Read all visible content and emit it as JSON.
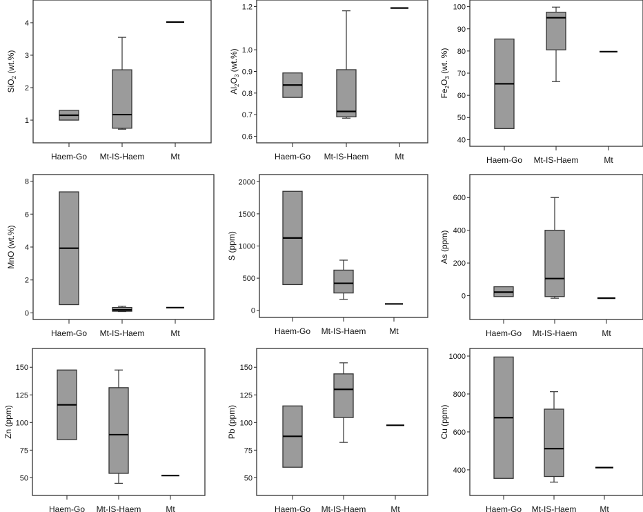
{
  "chart_data": [
    {
      "type": "box",
      "ylabel": "SiO2 (wt.%)",
      "ylabel_parts": [
        [
          "SiO",
          ""
        ],
        [
          "2",
          "sub"
        ],
        [
          " (wt.%)",
          ""
        ]
      ],
      "yticks": [
        1,
        2,
        3,
        4
      ],
      "tick_labels": [
        "1",
        "2",
        "3",
        "4"
      ],
      "ylim": [
        0.3,
        4.7
      ],
      "categories": [
        "Haem-Go",
        "Mt-IS-Haem",
        "Mt"
      ],
      "boxes": [
        {
          "category": "Haem-Go",
          "min": 1.0,
          "q1": 1.0,
          "median": 1.15,
          "q3": 1.3,
          "max": 1.3
        },
        {
          "category": "Mt-IS-Haem",
          "min": 0.72,
          "q1": 0.75,
          "median": 1.17,
          "q3": 2.55,
          "max": 3.55
        },
        {
          "category": "Mt",
          "single": 4.02
        }
      ]
    },
    {
      "type": "box",
      "ylabel": "Al2O3 (wt.%)",
      "ylabel_parts": [
        [
          "Al",
          ""
        ],
        [
          "2",
          "sub"
        ],
        [
          "O",
          ""
        ],
        [
          "3",
          "sub"
        ],
        [
          " (wt.%)",
          ""
        ]
      ],
      "yticks": [
        0.6,
        0.7,
        0.8,
        0.9,
        1.0,
        1.2
      ],
      "tick_labels": [
        "0.6",
        "0.7",
        "0.8",
        "0.9",
        "1.0",
        "1.2"
      ],
      "ylim": [
        0.57,
        1.23
      ],
      "categories": [
        "Haem-Go",
        "Mt-IS-Haem",
        "Mt"
      ],
      "boxes": [
        {
          "category": "Haem-Go",
          "min": 0.78,
          "q1": 0.78,
          "median": 0.837,
          "q3": 0.893,
          "max": 0.893
        },
        {
          "category": "Mt-IS-Haem",
          "min": 0.684,
          "q1": 0.69,
          "median": 0.715,
          "q3": 0.908,
          "max": 1.18
        },
        {
          "category": "Mt",
          "single": 1.193
        }
      ]
    },
    {
      "type": "box",
      "ylabel": "Fe2O3 (wt. %)",
      "ylabel_parts": [
        [
          "Fe",
          ""
        ],
        [
          "2",
          "sub"
        ],
        [
          "O",
          ""
        ],
        [
          "3",
          "sub"
        ],
        [
          " (wt. %)",
          ""
        ]
      ],
      "yticks": [
        40,
        50,
        60,
        70,
        80,
        90,
        100
      ],
      "tick_labels": [
        "40",
        "50",
        "60",
        "70",
        "80",
        "90",
        "100"
      ],
      "ylim": [
        37,
        103
      ],
      "categories": [
        "Haem-Go",
        "Mt-IS-Haem",
        "Mt"
      ],
      "boxes": [
        {
          "category": "Haem-Go",
          "min": 45,
          "q1": 45,
          "median": 65.2,
          "q3": 85.4,
          "max": 85.4
        },
        {
          "category": "Mt-IS-Haem",
          "min": 66.2,
          "q1": 80.5,
          "median": 95,
          "q3": 97.5,
          "max": 99.8
        },
        {
          "category": "Mt",
          "single": 79.7
        }
      ]
    },
    {
      "type": "box",
      "ylabel": "MnO (wt.%)",
      "ylabel_parts": [
        [
          "MnO (wt.%)",
          ""
        ]
      ],
      "yticks": [
        0,
        2,
        4,
        6,
        8
      ],
      "tick_labels": [
        "0",
        "2",
        "4",
        "6",
        "8"
      ],
      "ylim": [
        -0.4,
        8.4
      ],
      "categories": [
        "Haem-Go",
        "Mt-IS-Haem",
        "Mt"
      ],
      "boxes": [
        {
          "category": "Haem-Go",
          "min": 0.5,
          "q1": 0.5,
          "median": 3.93,
          "q3": 7.35,
          "max": 7.35
        },
        {
          "category": "Mt-IS-Haem",
          "min": 0.08,
          "q1": 0.1,
          "median": 0.18,
          "q3": 0.33,
          "max": 0.4
        },
        {
          "category": "Mt",
          "single": 0.32
        }
      ]
    },
    {
      "type": "box",
      "ylabel": "S (ppm)",
      "ylabel_parts": [
        [
          "S (ppm)",
          ""
        ]
      ],
      "yticks": [
        0,
        500,
        1000,
        1500,
        2000
      ],
      "tick_labels": [
        "0",
        "500",
        "1000",
        "1500",
        "2000"
      ],
      "ylim": [
        -110,
        2110
      ],
      "categories": [
        "Haem-Go",
        "Mt-IS-Haem",
        "Mt"
      ],
      "boxes": [
        {
          "category": "Haem-Go",
          "min": 400,
          "q1": 400,
          "median": 1125,
          "q3": 1850,
          "max": 1850
        },
        {
          "category": "Mt-IS-Haem",
          "min": 170,
          "q1": 270,
          "median": 420,
          "q3": 625,
          "max": 780
        },
        {
          "category": "Mt",
          "single": 100
        }
      ]
    },
    {
      "type": "box",
      "ylabel": "As (ppm)",
      "ylabel_parts": [
        [
          "As (ppm)",
          ""
        ]
      ],
      "yticks": [
        0,
        200,
        400,
        600
      ],
      "tick_labels": [
        "0",
        "200",
        "400",
        "600"
      ],
      "ylim": [
        -145,
        740
      ],
      "categories": [
        "Haem-Go",
        "Mt-IS-Haem",
        "Mt"
      ],
      "boxes": [
        {
          "category": "Haem-Go",
          "min": -5,
          "q1": -5,
          "median": 22,
          "q3": 55,
          "max": 55
        },
        {
          "category": "Mt-IS-Haem",
          "min": -15,
          "q1": -5,
          "median": 105,
          "q3": 400,
          "max": 600
        },
        {
          "category": "Mt",
          "single": -15
        }
      ]
    },
    {
      "type": "box",
      "ylabel": "Zn (ppm)",
      "ylabel_parts": [
        [
          "Zn (ppm)",
          ""
        ]
      ],
      "yticks": [
        50,
        75,
        100,
        125,
        150
      ],
      "tick_labels": [
        "50",
        "75",
        "100",
        "125",
        "150"
      ],
      "ylim": [
        34,
        167
      ],
      "categories": [
        "Haem-Go",
        "Mt-IS-Haem",
        "Mt"
      ],
      "boxes": [
        {
          "category": "Haem-Go",
          "min": 84.5,
          "q1": 84.5,
          "median": 116,
          "q3": 147.5,
          "max": 147.5
        },
        {
          "category": "Mt-IS-Haem",
          "min": 45,
          "q1": 54,
          "median": 89,
          "q3": 131.5,
          "max": 147.5
        },
        {
          "category": "Mt",
          "single": 52
        }
      ]
    },
    {
      "type": "box",
      "ylabel": "Pb (ppm)",
      "ylabel_parts": [
        [
          "Pb (ppm)",
          ""
        ]
      ],
      "yticks": [
        50,
        75,
        100,
        125,
        150
      ],
      "tick_labels": [
        "50",
        "75",
        "100",
        "125",
        "150"
      ],
      "ylim": [
        34,
        167
      ],
      "categories": [
        "Haem-Go",
        "Mt-IS-Haem",
        "Mt"
      ],
      "boxes": [
        {
          "category": "Haem-Go",
          "min": 59.5,
          "q1": 59.5,
          "median": 87.5,
          "q3": 115,
          "max": 115
        },
        {
          "category": "Mt-IS-Haem",
          "min": 82,
          "q1": 104.5,
          "median": 130,
          "q3": 144,
          "max": 154
        },
        {
          "category": "Mt",
          "single": 97.5
        }
      ]
    },
    {
      "type": "box",
      "ylabel": "Cu (ppm)",
      "ylabel_parts": [
        [
          "Cu (ppm)",
          ""
        ]
      ],
      "yticks": [
        400,
        600,
        800,
        1000
      ],
      "tick_labels": [
        "400",
        "600",
        "800",
        "1000"
      ],
      "ylim": [
        265,
        1040
      ],
      "categories": [
        "Haem-Go",
        "Mt-IS-Haem",
        "Mt"
      ],
      "boxes": [
        {
          "category": "Haem-Go",
          "min": 355,
          "q1": 355,
          "median": 675,
          "q3": 995,
          "max": 995
        },
        {
          "category": "Mt-IS-Haem",
          "min": 335,
          "q1": 365,
          "median": 512,
          "q3": 720,
          "max": 812
        },
        {
          "category": "Mt",
          "single": 412
        }
      ]
    }
  ]
}
